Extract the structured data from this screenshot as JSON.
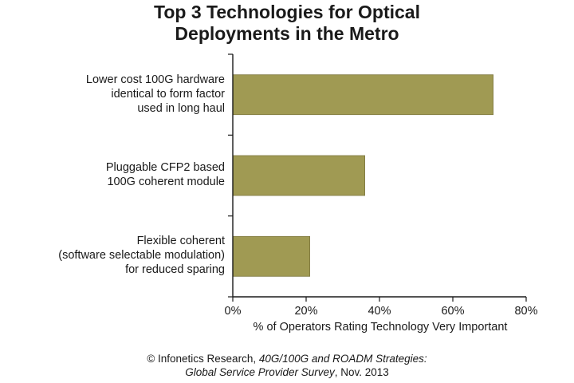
{
  "chart_data": {
    "type": "bar",
    "orientation": "horizontal",
    "title": [
      "Top 3 Technologies for Optical",
      "Deployments in the Metro"
    ],
    "categories": [
      [
        "Lower cost 100G hardware",
        "identical to form factor",
        "used in long haul"
      ],
      [
        "Pluggable CFP2 based",
        "100G coherent module"
      ],
      [
        "Flexible coherent",
        "(software selectable modulation)",
        "for reduced sparing"
      ]
    ],
    "values": [
      71,
      36,
      21
    ],
    "xlabel": "% of Operators Rating Technology Very Important",
    "ylabel": "",
    "xlim": [
      0,
      80
    ],
    "xticks": [
      0,
      20,
      40,
      60,
      80
    ],
    "xtick_labels": [
      "0%",
      "20%",
      "40%",
      "60%",
      "80%"
    ],
    "grid": false,
    "legend": "none",
    "bar_color": "#a09a53",
    "bar_edge_color": "#7d7840"
  },
  "source": {
    "line1_prefix": "© Infonetics Research, ",
    "line1_italic": "40G/100G and ROADM Strategies:",
    "line2_italic": "Global Service Provider Survey",
    "line2_suffix": ", Nov. 2013"
  }
}
